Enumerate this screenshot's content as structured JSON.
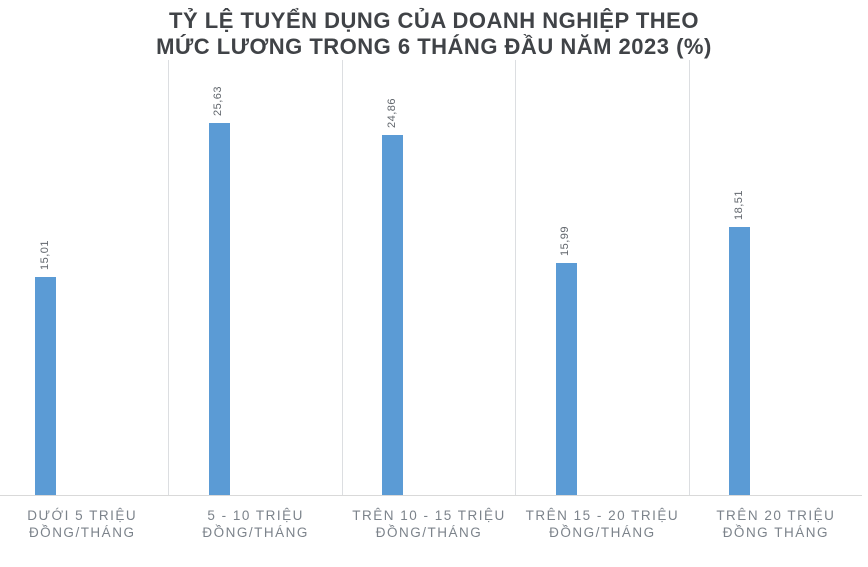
{
  "chart_data": {
    "type": "bar",
    "title": "TỶ LỆ TUYỂN DỤNG CỦA DOANH NGHIỆP THEO MỨC LƯƠNG TRONG 6 THÁNG ĐẦU NĂM 2023 (%)",
    "title_lines": [
      "TỶ LỆ TUYỂN DỤNG CỦA DOANH NGHIỆP THEO",
      "MỨC LƯƠNG TRONG 6 THÁNG ĐẦU NĂM 2023 (%)"
    ],
    "categories": [
      "DƯỚI 5 TRIỆU ĐỒNG/THÁNG",
      "5 - 10 TRIỆU ĐỒNG/THÁNG",
      "TRÊN 10 - 15 TRIỆU ĐỒNG/THÁNG",
      "TRÊN 15 - 20 TRIỆU ĐỒNG/THÁNG",
      "TRÊN 20 TRIỆU ĐỒNG THÁNG"
    ],
    "category_lines": [
      [
        "DƯỚI 5 TRIỆU",
        "ĐỒNG/THÁNG"
      ],
      [
        "5 - 10 TRIỆU",
        "ĐỒNG/THÁNG"
      ],
      [
        "TRÊN 10 - 15 TRIỆU",
        "ĐỒNG/THÁNG"
      ],
      [
        "TRÊN 15 - 20 TRIỆU",
        "ĐỒNG/THÁNG"
      ],
      [
        "TRÊN 20 TRIỆU",
        "ĐỒNG THÁNG"
      ]
    ],
    "values": [
      15.01,
      25.63,
      24.86,
      15.99,
      18.51
    ],
    "value_labels": [
      "15,01",
      "25,63",
      "24,86",
      "15,99",
      "18,51"
    ],
    "xlabel": "",
    "ylabel": "",
    "ylim": [
      0,
      30
    ],
    "grid": "vertical-category-separators",
    "legend": "none",
    "value_label_rotation": "vertical-bottom-to-top",
    "colors": {
      "bar": "#5B9BD5",
      "title": "#404347",
      "value_label": "#62676D",
      "category_label": "#7C838B",
      "axis_line": "#D9D9D9"
    }
  }
}
